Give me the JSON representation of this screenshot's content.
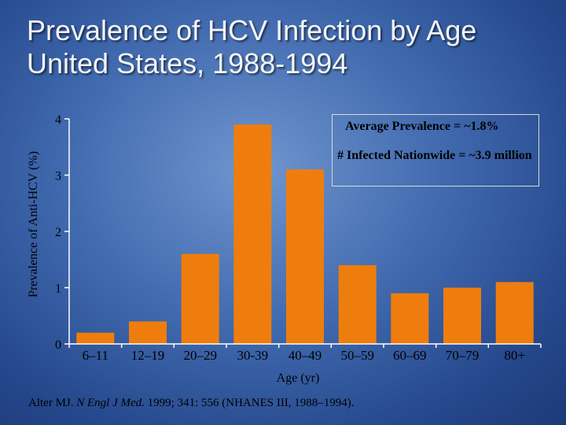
{
  "slide": {
    "title_line1": "Prevalence of HCV Infection by Age",
    "title_line2": "United States, 1988-1994"
  },
  "info_box": {
    "line1": "Average Prevalence = ~1.8%",
    "line2": "# Infected Nationwide = ~3.9 million"
  },
  "citation": {
    "author": "Alter MJ.",
    "journal": "N Engl J Med.",
    "rest": "1999; 341: 556 (NHANES III, 1988–1994)."
  },
  "colors": {
    "bar": "#ef7d0e",
    "axis": "#ffffff"
  },
  "chart_data": {
    "type": "bar",
    "categories": [
      "6–11",
      "12–19",
      "20–29",
      "30-39",
      "40–49",
      "50–59",
      "60–69",
      "70–79",
      "80+"
    ],
    "values": [
      0.2,
      0.4,
      1.6,
      3.9,
      3.1,
      1.4,
      0.9,
      1.0,
      1.1
    ],
    "title": "",
    "xlabel": "Age (yr)",
    "ylabel": "Prevalence of Anti-HCV (%)",
    "ylim": [
      0,
      4
    ],
    "yticks": [
      0,
      1,
      2,
      3,
      4
    ],
    "grid": false,
    "legend": "none"
  }
}
